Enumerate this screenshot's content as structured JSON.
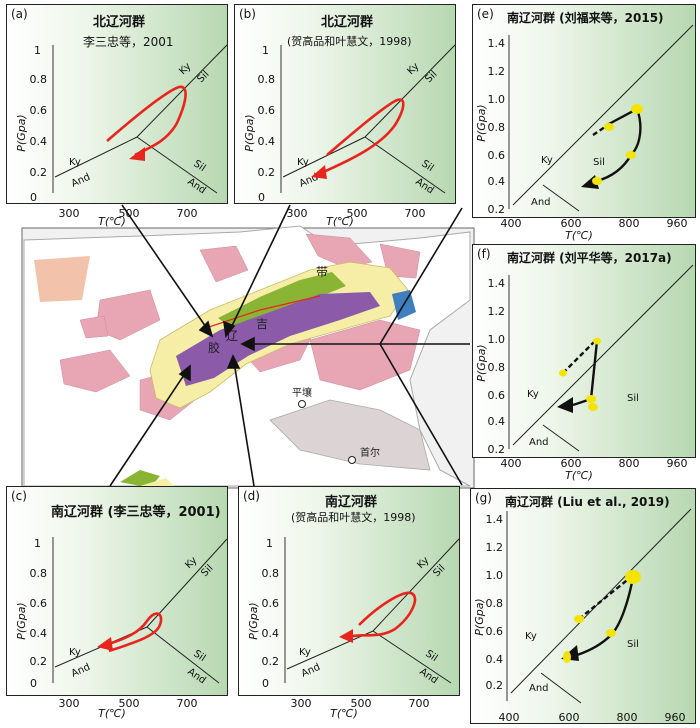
{
  "axis": {
    "y_label": "P(Gpa)",
    "x_label": "T(℃)"
  },
  "minerals": {
    "ky": "Ky",
    "sil": "Sil",
    "and": "And"
  },
  "panels": {
    "a": {
      "label": "(a)",
      "title": "北辽河群",
      "subtitle": "李三忠等，2001",
      "x_ticks": [
        "300",
        "500",
        "700"
      ],
      "y_ticks": [
        "0",
        "0.2",
        "0.4",
        "0.6",
        "0.8",
        "1"
      ]
    },
    "b": {
      "label": "(b)",
      "title": "北辽河群",
      "subtitle": "(贺高品和叶慧文，1998)",
      "x_ticks": [
        "300",
        "500",
        "700"
      ],
      "y_ticks": [
        "0",
        "0.2",
        "0.4",
        "0.6",
        "0.8",
        "1"
      ]
    },
    "c": {
      "label": "(c)",
      "title": "南辽河群 (李三忠等，2001)",
      "x_ticks": [
        "300",
        "500",
        "700"
      ],
      "y_ticks": [
        "0",
        "0.2",
        "0.4",
        "0.6",
        "0.8",
        "1"
      ]
    },
    "d": {
      "label": "(d)",
      "title": "南辽河群",
      "subtitle": "(贺高品和叶慧文，1998)",
      "x_ticks": [
        "300",
        "500",
        "700"
      ],
      "y_ticks": [
        "0",
        "0.2",
        "0.4",
        "0.6",
        "0.8",
        "1"
      ]
    },
    "e": {
      "label": "(e)",
      "title": "南辽河群 (刘福来等，2015)",
      "x_ticks": [
        "400",
        "600",
        "800",
        "960"
      ],
      "y_ticks": [
        "0.2",
        "0.4",
        "0.6",
        "0.8",
        "1.0",
        "1.2",
        "1.4"
      ]
    },
    "f": {
      "label": "(f)",
      "title": "南辽河群 (刘平华等，2017a)",
      "x_ticks": [
        "400",
        "600",
        "800",
        "960"
      ],
      "y_ticks": [
        "0.2",
        "0.4",
        "0.6",
        "0.8",
        "1.0",
        "1.2",
        "1.4"
      ]
    },
    "g": {
      "label": "(g)",
      "title": "南辽河群 (Liu et al., 2019)",
      "x_ticks": [
        "400",
        "600",
        "800",
        "960"
      ],
      "y_ticks": [
        "0.2",
        "0.4",
        "0.6",
        "0.8",
        "1.0",
        "1.2",
        "1.4"
      ]
    }
  },
  "map": {
    "cities": [
      "平壤",
      "首尔"
    ],
    "belt_chars": [
      "胶",
      "辽",
      "吉",
      "带"
    ]
  },
  "colors": {
    "panel_green": "#b7d8b1",
    "path_red": "#e8251d",
    "point_yellow": "#f5e400",
    "granite_pink": "#e8a6b4",
    "belt_purple": "#8b5aa8",
    "belt_yellow": "#f6eea6",
    "belt_green": "#8ab433",
    "block_blue": "#3f7fc0",
    "basin_gray": "#dcd4d4",
    "orange_block": "#f3c2ab"
  }
}
